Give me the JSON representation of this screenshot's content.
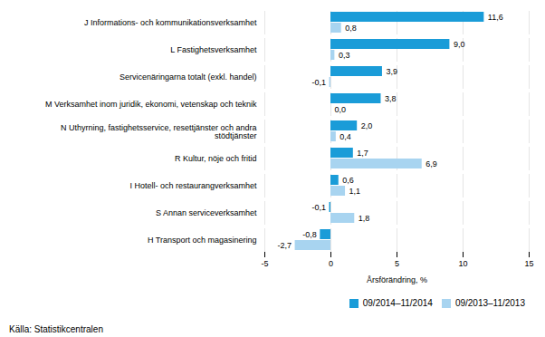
{
  "chart_data": {
    "type": "bar",
    "orientation": "horizontal",
    "categories": [
      "H Transport och magasinering",
      "S Annan serviceverksamhet",
      "I Hotell- och restaurangverksamhet",
      "R Kultur, nöje och fritid",
      "N Uthyrning, fastighetsservice, resettjänster och andra\nstödtjänster",
      "M Verksamhet inom juridik, ekonomi, vetenskap och teknik",
      "Servicenäringarna totalt (exkl. handel)",
      "L Fastighetsverksamhet",
      "J Informations- och kommunikationsverksamhet"
    ],
    "series": [
      {
        "name": "09/2014–11/2014",
        "color": "#1a9cd8",
        "values": [
          -0.8,
          -0.1,
          0.6,
          1.7,
          2.0,
          3.8,
          3.9,
          9.0,
          11.6
        ],
        "value_labels": [
          "-0,8",
          "-0,1",
          "0,6",
          "1,7",
          "2,0",
          "3,8",
          "3,9",
          "9,0",
          "11,6"
        ]
      },
      {
        "name": "09/2013–11/2013",
        "color": "#a8d4f0",
        "values": [
          -2.7,
          1.8,
          1.1,
          6.9,
          0.4,
          0.0,
          -0.1,
          0.3,
          0.8
        ],
        "value_labels": [
          "-2,7",
          "1,8",
          "1,1",
          "6,9",
          "0,4",
          "0,0",
          "-0,1",
          "0,3",
          "0,8"
        ]
      }
    ],
    "xlabel": "Årsförändring, %",
    "xlim": [
      -5,
      15
    ],
    "xticks": [
      -5,
      0,
      5,
      10,
      15
    ],
    "grid": true,
    "legend": "lower right",
    "data_labels": true,
    "annotations": [
      "Källa:  Statistikcentralen"
    ]
  }
}
